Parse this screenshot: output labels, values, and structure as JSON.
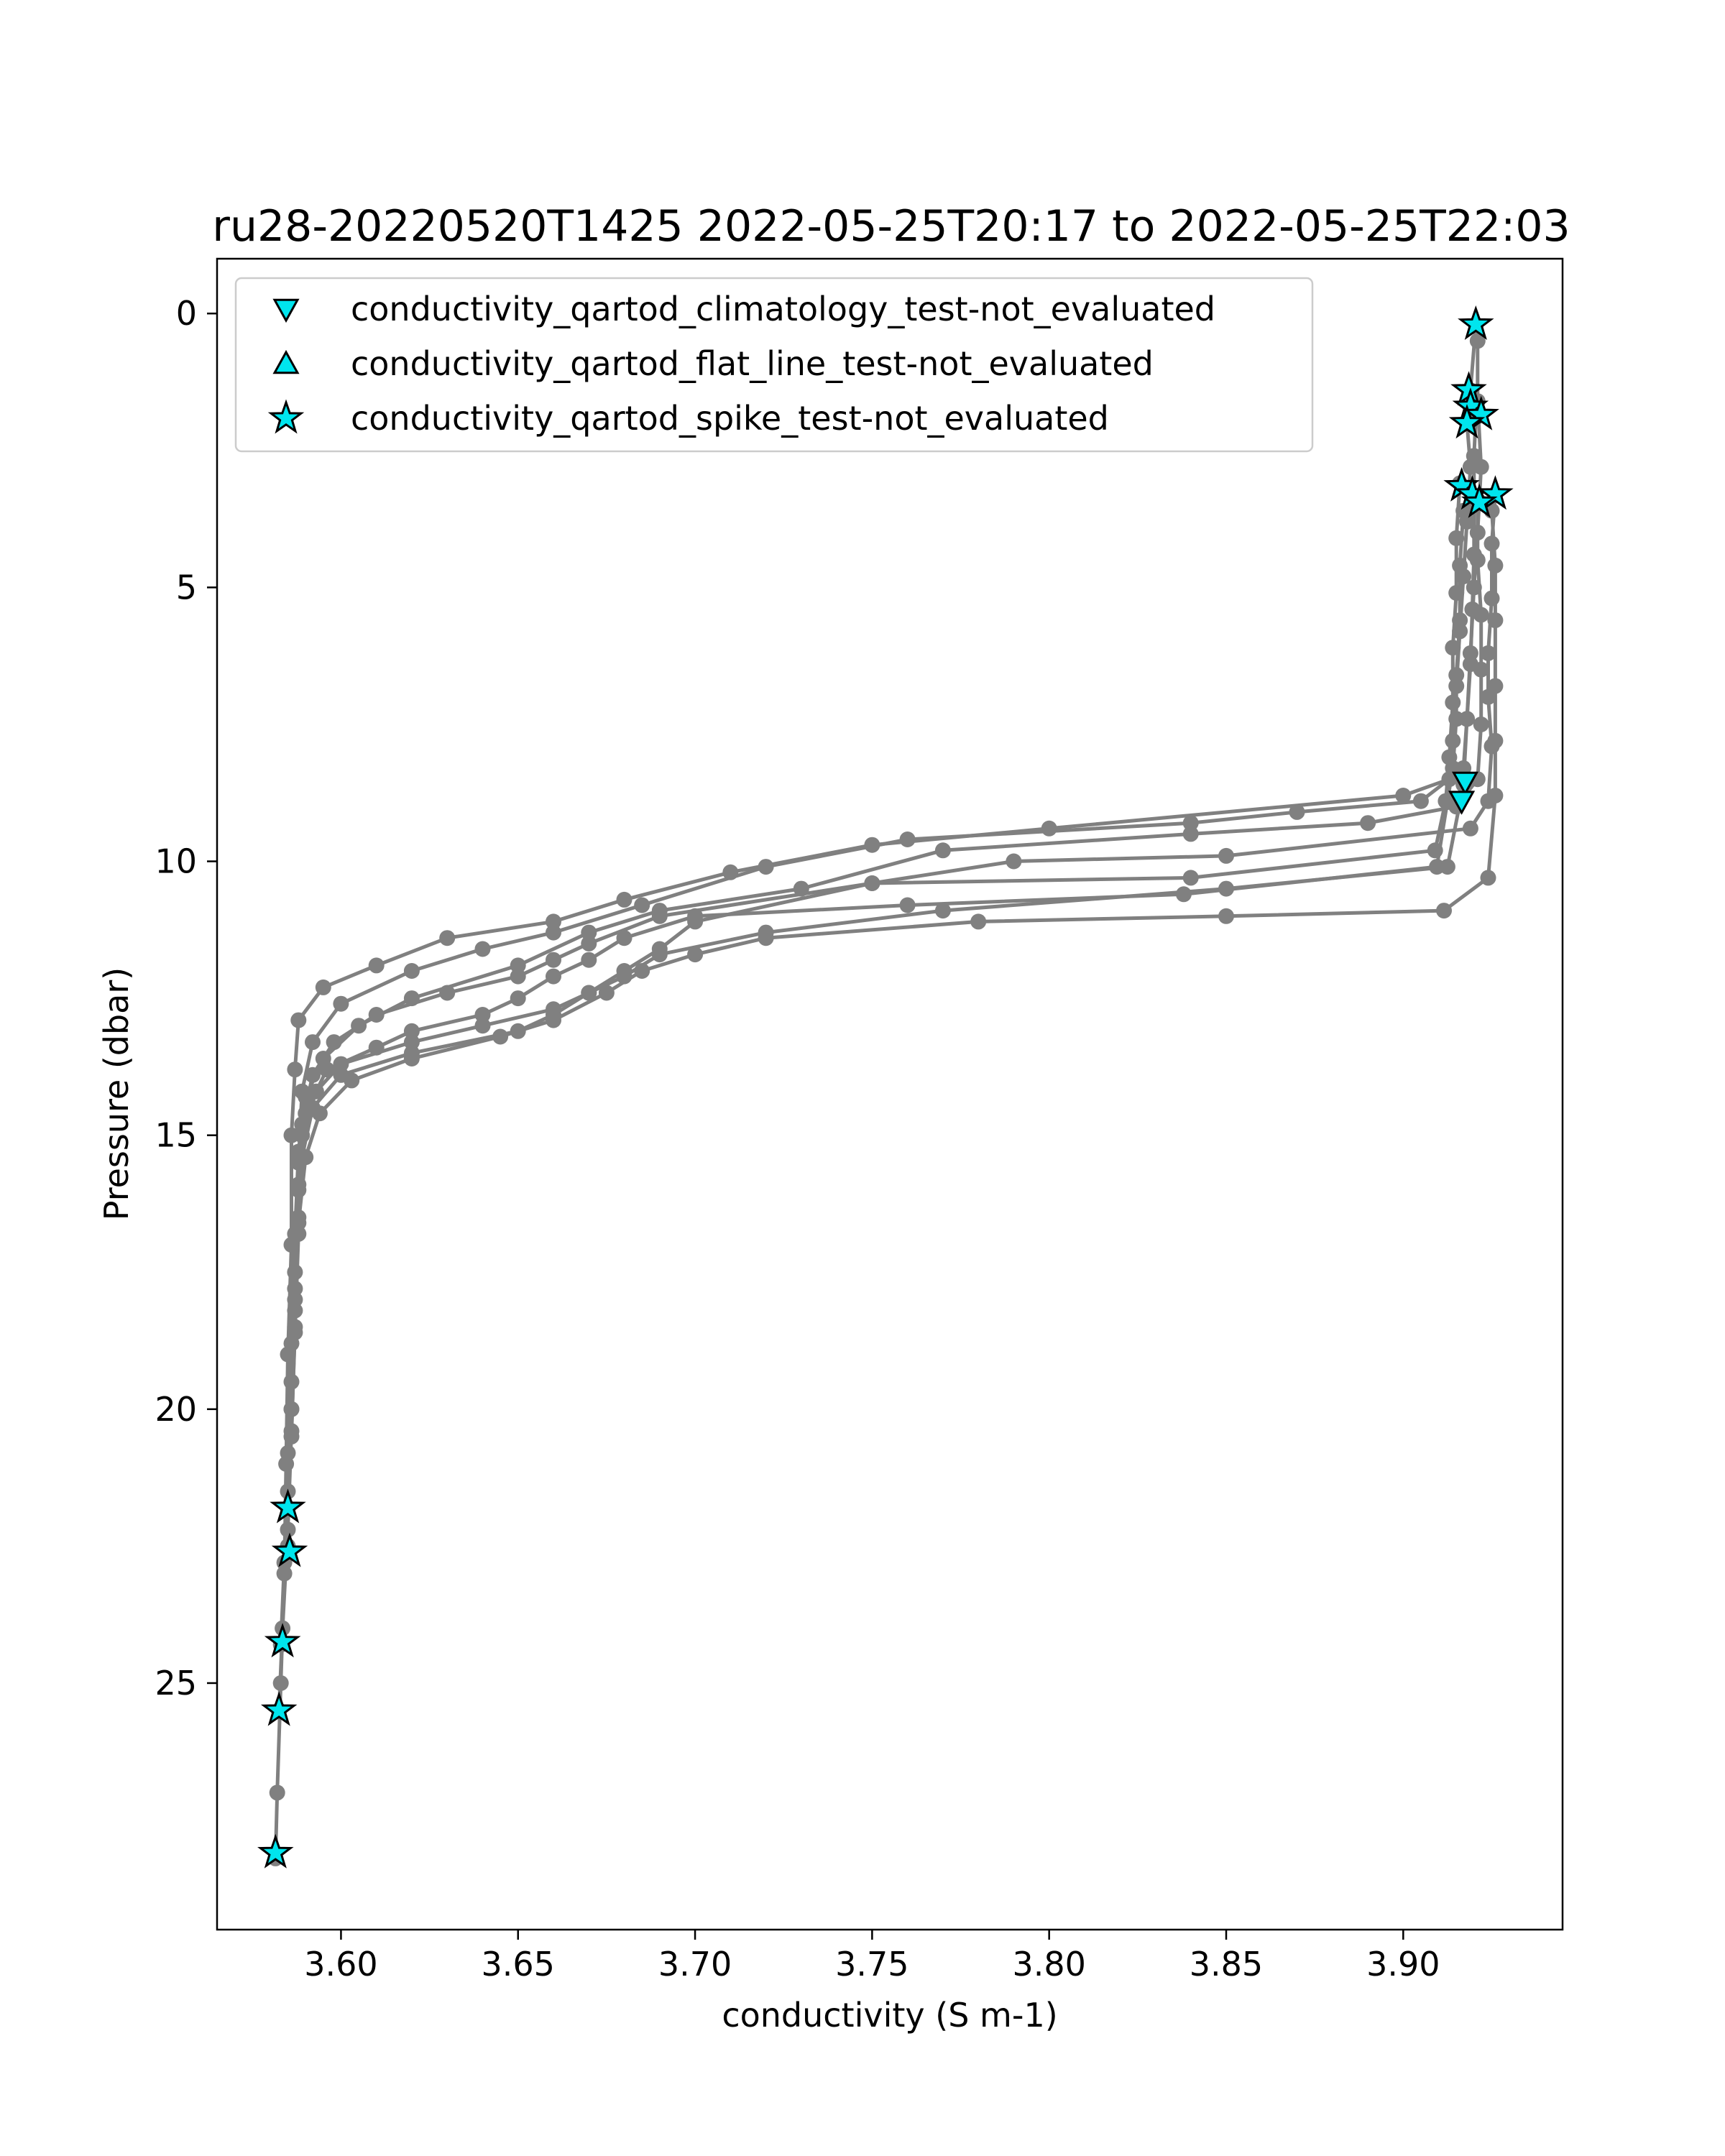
{
  "chart_data": {
    "type": "line",
    "title": "ru28-20220520T1425 2022-05-25T20:17 to 2022-05-25T22:03",
    "xlabel": "conductivity (S m-1)",
    "ylabel": "Pressure (dbar)",
    "xlim": [
      3.565,
      3.945
    ],
    "ylim": [
      29.5,
      -1.0
    ],
    "y_inverted": true,
    "xticks": [
      3.6,
      3.65,
      3.7,
      3.75,
      3.8,
      3.85,
      3.9
    ],
    "xtick_labels": [
      "3.60",
      "3.65",
      "3.70",
      "3.75",
      "3.80",
      "3.85",
      "3.90"
    ],
    "yticks": [
      0,
      5,
      10,
      15,
      20,
      25
    ],
    "ytick_labels": [
      "0",
      "5",
      "10",
      "15",
      "20",
      "25"
    ],
    "grid": false,
    "legend_position": "top-left",
    "colors": {
      "profile_line": "#808080",
      "marker_fill": "#00e5ee",
      "marker_edge": "#000000"
    },
    "legend": [
      {
        "label": "conductivity_qartod_climatology_test-not_evaluated",
        "marker": "triangle-down"
      },
      {
        "label": "conductivity_qartod_flat_line_test-not_evaluated",
        "marker": "triangle-up"
      },
      {
        "label": "conductivity_qartod_spike_test-not_evaluated",
        "marker": "star"
      }
    ],
    "profiles": [
      [
        [
          3.9205,
          0.2
        ],
        [
          3.919,
          1.4
        ],
        [
          3.918,
          2.0
        ],
        [
          3.919,
          2.8
        ],
        [
          3.918,
          3.8
        ],
        [
          3.917,
          4.8
        ],
        [
          3.916,
          5.8
        ],
        [
          3.915,
          6.8
        ],
        [
          3.914,
          7.8
        ],
        [
          3.913,
          8.5
        ],
        [
          3.9,
          8.8
        ],
        [
          3.8,
          9.4
        ],
        [
          3.75,
          9.7
        ],
        [
          3.71,
          10.2
        ],
        [
          3.68,
          10.7
        ],
        [
          3.66,
          11.1
        ],
        [
          3.63,
          11.4
        ],
        [
          3.61,
          11.9
        ],
        [
          3.595,
          12.3
        ],
        [
          3.588,
          12.9
        ],
        [
          3.587,
          13.8
        ],
        [
          3.586,
          15
        ],
        [
          3.586,
          17
        ],
        [
          3.585,
          19
        ],
        [
          3.5845,
          21
        ],
        [
          3.584,
          23
        ],
        [
          3.583,
          25
        ],
        [
          3.582,
          27
        ],
        [
          3.5815,
          28.2
        ]
      ],
      [
        [
          3.921,
          0.5
        ],
        [
          3.921,
          1.6
        ],
        [
          3.922,
          2.8
        ],
        [
          3.921,
          4.0
        ],
        [
          3.92,
          5.0
        ],
        [
          3.919,
          6.2
        ],
        [
          3.918,
          7.4
        ],
        [
          3.917,
          8.3
        ],
        [
          3.905,
          8.9
        ],
        [
          3.87,
          9.1
        ],
        [
          3.84,
          9.3
        ],
        [
          3.76,
          9.6
        ],
        [
          3.72,
          10.1
        ],
        [
          3.685,
          10.8
        ],
        [
          3.66,
          11.3
        ],
        [
          3.64,
          11.6
        ],
        [
          3.62,
          12.0
        ],
        [
          3.6,
          12.6
        ],
        [
          3.592,
          13.3
        ],
        [
          3.589,
          14.2
        ],
        [
          3.588,
          15.5
        ],
        [
          3.587,
          17.5
        ],
        [
          3.586,
          19.5
        ],
        [
          3.585,
          21.5
        ],
        [
          3.585,
          22.5
        ]
      ],
      [
        [
          3.926,
          3.3
        ],
        [
          3.925,
          4.2
        ],
        [
          3.925,
          5.2
        ],
        [
          3.924,
          6.2
        ],
        [
          3.924,
          7.0
        ],
        [
          3.925,
          7.9
        ],
        [
          3.924,
          8.9
        ],
        [
          3.919,
          9.4
        ],
        [
          3.85,
          9.9
        ],
        [
          3.79,
          10.0
        ],
        [
          3.75,
          10.4
        ],
        [
          3.69,
          11.0
        ],
        [
          3.67,
          11.5
        ],
        [
          3.66,
          11.8
        ],
        [
          3.65,
          12.1
        ],
        [
          3.63,
          12.4
        ],
        [
          3.61,
          12.8
        ],
        [
          3.598,
          13.3
        ],
        [
          3.592,
          13.9
        ],
        [
          3.589,
          14.8
        ],
        [
          3.588,
          16
        ],
        [
          3.587,
          18
        ],
        [
          3.586,
          20
        ],
        [
          3.585,
          21.8
        ]
      ],
      [
        [
          3.921,
          3.4
        ],
        [
          3.921,
          4.5
        ],
        [
          3.922,
          5.5
        ],
        [
          3.922,
          6.5
        ],
        [
          3.922,
          7.5
        ],
        [
          3.921,
          8.5
        ],
        [
          3.915,
          9.0
        ],
        [
          3.89,
          9.3
        ],
        [
          3.84,
          9.5
        ],
        [
          3.77,
          9.8
        ],
        [
          3.73,
          10.5
        ],
        [
          3.69,
          10.9
        ],
        [
          3.67,
          11.3
        ],
        [
          3.65,
          11.9
        ],
        [
          3.62,
          12.5
        ],
        [
          3.605,
          13.0
        ],
        [
          3.595,
          13.6
        ],
        [
          3.59,
          14.3
        ],
        [
          3.588,
          15.3
        ],
        [
          3.587,
          16.8
        ],
        [
          3.586,
          18.8
        ],
        [
          3.585,
          20.8
        ],
        [
          3.584,
          22.8
        ],
        [
          3.583,
          24.3
        ]
      ],
      [
        [
          3.916,
          3.1
        ],
        [
          3.915,
          4.1
        ],
        [
          3.915,
          5.1
        ],
        [
          3.914,
          6.1
        ],
        [
          3.914,
          7.1
        ],
        [
          3.913,
          8.1
        ],
        [
          3.912,
          8.9
        ],
        [
          3.909,
          9.8
        ],
        [
          3.84,
          10.3
        ],
        [
          3.75,
          10.4
        ],
        [
          3.7,
          11.1
        ],
        [
          3.69,
          11.6
        ],
        [
          3.68,
          12.0
        ],
        [
          3.67,
          12.4
        ],
        [
          3.66,
          12.8
        ],
        [
          3.65,
          13.1
        ],
        [
          3.62,
          13.5
        ],
        [
          3.6,
          13.9
        ],
        [
          3.592,
          14.5
        ],
        [
          3.589,
          15.4
        ],
        [
          3.588,
          16.8
        ],
        [
          3.587,
          18.6
        ],
        [
          3.586,
          20.4
        ],
        [
          3.585,
          22.2
        ],
        [
          3.5835,
          24
        ],
        [
          3.5825,
          25.5
        ]
      ],
      [
        [
          3.917,
          3.6
        ],
        [
          3.916,
          4.6
        ],
        [
          3.916,
          5.6
        ],
        [
          3.915,
          6.6
        ],
        [
          3.915,
          7.4
        ],
        [
          3.914,
          8.3
        ],
        [
          3.9095,
          10.1
        ],
        [
          3.838,
          10.6
        ],
        [
          3.76,
          10.8
        ],
        [
          3.7,
          11.0
        ],
        [
          3.68,
          11.4
        ],
        [
          3.67,
          11.8
        ],
        [
          3.66,
          12.1
        ],
        [
          3.65,
          12.5
        ],
        [
          3.64,
          12.8
        ],
        [
          3.62,
          13.1
        ],
        [
          3.61,
          13.4
        ],
        [
          3.596,
          13.8
        ],
        [
          3.59,
          14.6
        ],
        [
          3.588,
          15.9
        ],
        [
          3.587,
          17.8
        ]
      ],
      [
        [
          3.9205,
          1.9
        ],
        [
          3.92,
          2.6
        ],
        [
          3.92,
          3.5
        ],
        [
          3.92,
          4.4
        ],
        [
          3.9195,
          5.4
        ],
        [
          3.919,
          6.4
        ],
        [
          3.918,
          7.4
        ],
        [
          3.917,
          8.6
        ],
        [
          3.9125,
          10.1
        ],
        [
          3.85,
          10.5
        ],
        [
          3.77,
          10.9
        ],
        [
          3.72,
          11.3
        ],
        [
          3.69,
          11.7
        ],
        [
          3.68,
          12.1
        ],
        [
          3.67,
          12.4
        ],
        [
          3.66,
          12.7
        ],
        [
          3.64,
          13.0
        ],
        [
          3.62,
          13.3
        ],
        [
          3.6,
          13.7
        ],
        [
          3.593,
          14.2
        ],
        [
          3.589,
          15.0
        ],
        [
          3.588,
          16.5
        ],
        [
          3.587,
          18.2
        ],
        [
          3.586,
          20
        ]
      ],
      [
        [
          3.925,
          3.6
        ],
        [
          3.926,
          4.6
        ],
        [
          3.926,
          5.6
        ],
        [
          3.926,
          6.8
        ],
        [
          3.926,
          7.8
        ],
        [
          3.926,
          8.8
        ],
        [
          3.924,
          10.3
        ],
        [
          3.9115,
          10.9
        ],
        [
          3.85,
          11.0
        ],
        [
          3.78,
          11.1
        ],
        [
          3.72,
          11.4
        ],
        [
          3.7,
          11.7
        ],
        [
          3.685,
          12.0
        ],
        [
          3.675,
          12.4
        ],
        [
          3.66,
          12.9
        ],
        [
          3.645,
          13.2
        ],
        [
          3.62,
          13.6
        ],
        [
          3.603,
          14.0
        ],
        [
          3.594,
          14.6
        ],
        [
          3.59,
          15.4
        ],
        [
          3.588,
          16.6
        ],
        [
          3.587,
          18.5
        ],
        [
          3.586,
          20.5
        ]
      ]
    ],
    "markers": [
      {
        "type": "star",
        "points": [
          [
            3.9205,
            0.2
          ],
          [
            3.9185,
            1.4
          ],
          [
            3.919,
            1.7
          ],
          [
            3.922,
            1.85
          ],
          [
            3.918,
            2.0
          ],
          [
            3.9165,
            3.15
          ],
          [
            3.9195,
            3.3
          ],
          [
            3.926,
            3.3
          ],
          [
            3.9215,
            3.45
          ],
          [
            3.585,
            21.8
          ],
          [
            3.5855,
            22.6
          ],
          [
            3.5835,
            24.25
          ],
          [
            3.5825,
            25.5
          ],
          [
            3.5815,
            28.1
          ]
        ]
      },
      {
        "type": "triangle-down",
        "points": [
          [
            3.9175,
            8.55
          ],
          [
            3.9165,
            8.9
          ]
        ]
      }
    ]
  }
}
